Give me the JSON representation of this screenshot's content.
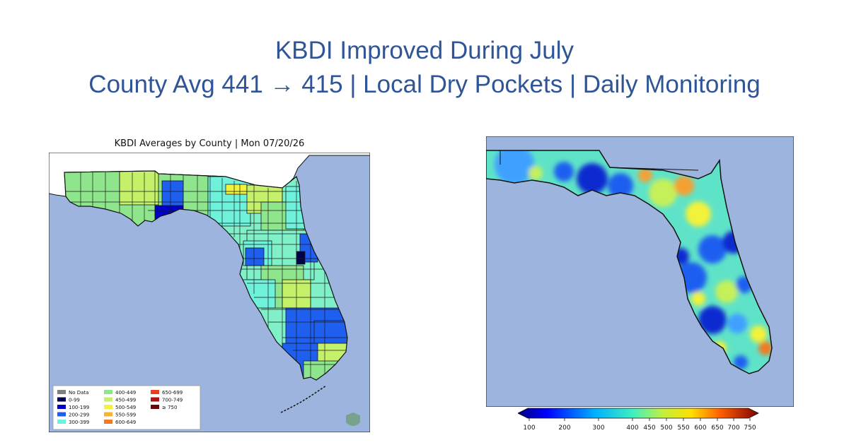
{
  "slide": {
    "title_line1": "KBDI Improved During July",
    "title_line2": "County Avg 441 → 415 | Local Dry Pockets | Daily Monitoring"
  },
  "left_map": {
    "title": "KBDI Averages by County | Mon 07/20/26",
    "legend": [
      {
        "label": "No Data",
        "color": "#7f7f7f"
      },
      {
        "label": "0-99",
        "color": "#00004c"
      },
      {
        "label": "100-199",
        "color": "#0000c8"
      },
      {
        "label": "200-299",
        "color": "#1f5ff0"
      },
      {
        "label": "300-399",
        "color": "#6ef2dc"
      },
      {
        "label": "400-449",
        "color": "#8ee58c"
      },
      {
        "label": "450-499",
        "color": "#c4f06a"
      },
      {
        "label": "500-549",
        "color": "#f2f23a"
      },
      {
        "label": "550-599",
        "color": "#f5b436"
      },
      {
        "label": "600-649",
        "color": "#f07a28"
      },
      {
        "label": "650-699",
        "color": "#e8401c"
      },
      {
        "label": "700-749",
        "color": "#b01212"
      },
      {
        "label": "≥ 750",
        "color": "#6a0808"
      }
    ],
    "colors": {
      "water": "#9db5de",
      "land_outside": "#ffffff",
      "county_base": "#7ff0c8"
    }
  },
  "right_map": {
    "colorbar_ticks": [
      "100",
      "200",
      "300",
      "400",
      "450",
      "500",
      "550",
      "600",
      "650",
      "700",
      "750"
    ]
  }
}
